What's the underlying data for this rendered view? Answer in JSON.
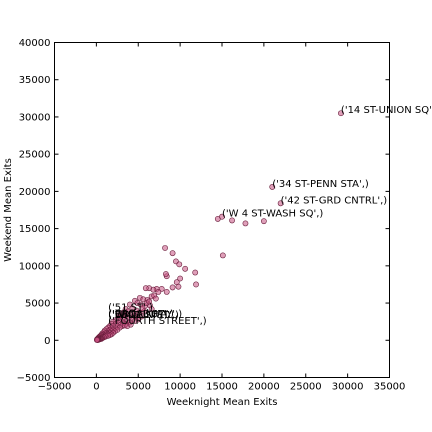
{
  "chart_data": {
    "type": "scatter",
    "title": "",
    "xlabel": "Weeknight Mean Exits",
    "ylabel": "Weekend Mean Exits",
    "xlim": [
      -5000,
      35000
    ],
    "ylim": [
      -5000,
      40000
    ],
    "x_ticks": [
      "−5000",
      "0",
      "5000",
      "10000",
      "15000",
      "20000",
      "25000",
      "30000",
      "35000"
    ],
    "y_ticks": [
      "−5000",
      "0",
      "5000",
      "10000",
      "15000",
      "20000",
      "25000",
      "30000",
      "35000",
      "40000"
    ],
    "grid": false,
    "marker_color": "#c4507f",
    "points": [
      [
        29200,
        30500
      ],
      [
        21000,
        20600
      ],
      [
        22000,
        18400
      ],
      [
        14500,
        16300
      ],
      [
        15000,
        16600
      ],
      [
        16200,
        16100
      ],
      [
        17800,
        15700
      ],
      [
        20000,
        16000
      ],
      [
        15100,
        11400
      ],
      [
        8200,
        12400
      ],
      [
        9100,
        11700
      ],
      [
        9500,
        10600
      ],
      [
        9900,
        10200
      ],
      [
        10600,
        9600
      ],
      [
        11800,
        9100
      ],
      [
        8400,
        8600
      ],
      [
        8300,
        8900
      ],
      [
        10000,
        8300
      ],
      [
        9600,
        7800
      ],
      [
        9100,
        7100
      ],
      [
        9800,
        7200
      ],
      [
        11900,
        7500
      ],
      [
        7800,
        6900
      ],
      [
        7200,
        6900
      ],
      [
        6800,
        6800
      ],
      [
        6300,
        7000
      ],
      [
        5900,
        7000
      ],
      [
        7400,
        6500
      ],
      [
        8400,
        6500
      ],
      [
        5200,
        5700
      ],
      [
        5600,
        5500
      ],
      [
        6100,
        5400
      ],
      [
        6600,
        5900
      ],
      [
        6900,
        6000
      ],
      [
        7100,
        5600
      ],
      [
        4600,
        5300
      ],
      [
        4900,
        5000
      ],
      [
        5300,
        4800
      ],
      [
        5800,
        4600
      ],
      [
        6400,
        4700
      ],
      [
        6600,
        4200
      ],
      [
        4000,
        4800
      ],
      [
        4300,
        4300
      ],
      [
        4800,
        4000
      ],
      [
        5100,
        3700
      ],
      [
        5700,
        3900
      ],
      [
        3500,
        4200
      ],
      [
        3800,
        3900
      ],
      [
        4200,
        3600
      ],
      [
        4500,
        3300
      ],
      [
        4900,
        3100
      ],
      [
        5400,
        3200
      ],
      [
        3200,
        3600
      ],
      [
        3500,
        3300
      ],
      [
        3900,
        3000
      ],
      [
        4300,
        2800
      ],
      [
        2900,
        3200
      ],
      [
        3200,
        2900
      ],
      [
        3600,
        2600
      ],
      [
        4000,
        2400
      ],
      [
        2600,
        3000
      ],
      [
        2900,
        2700
      ],
      [
        3200,
        2400
      ],
      [
        3500,
        2200
      ],
      [
        2300,
        2700
      ],
      [
        2600,
        2400
      ],
      [
        2900,
        2100
      ],
      [
        3100,
        1900
      ],
      [
        2000,
        2500
      ],
      [
        2300,
        2200
      ],
      [
        2500,
        1900
      ],
      [
        2800,
        1700
      ],
      [
        1800,
        2200
      ],
      [
        2000,
        1900
      ],
      [
        2300,
        1600
      ],
      [
        2500,
        1400
      ],
      [
        1600,
        1900
      ],
      [
        1800,
        1600
      ],
      [
        2000,
        1400
      ],
      [
        2200,
        1200
      ],
      [
        1400,
        1700
      ],
      [
        1600,
        1400
      ],
      [
        1800,
        1200
      ],
      [
        2000,
        1000
      ],
      [
        1200,
        1500
      ],
      [
        1400,
        1200
      ],
      [
        1600,
        1000
      ],
      [
        1800,
        800
      ],
      [
        1000,
        1300
      ],
      [
        1200,
        1000
      ],
      [
        1400,
        800
      ],
      [
        1600,
        700
      ],
      [
        900,
        1100
      ],
      [
        1000,
        900
      ],
      [
        1200,
        700
      ],
      [
        1400,
        600
      ],
      [
        700,
        900
      ],
      [
        800,
        700
      ],
      [
        1000,
        600
      ],
      [
        1100,
        500
      ],
      [
        600,
        700
      ],
      [
        700,
        500
      ],
      [
        800,
        400
      ],
      [
        900,
        400
      ],
      [
        500,
        600
      ],
      [
        600,
        400
      ],
      [
        700,
        300
      ],
      [
        400,
        500
      ],
      [
        500,
        300
      ],
      [
        600,
        200
      ],
      [
        300,
        400
      ],
      [
        400,
        300
      ],
      [
        500,
        200
      ],
      [
        250,
        300
      ],
      [
        300,
        200
      ],
      [
        400,
        150
      ],
      [
        200,
        250
      ],
      [
        250,
        150
      ],
      [
        300,
        100
      ],
      [
        150,
        200
      ],
      [
        200,
        120
      ],
      [
        250,
        80
      ],
      [
        100,
        150
      ],
      [
        150,
        100
      ],
      [
        200,
        60
      ],
      [
        80,
        100
      ],
      [
        100,
        60
      ],
      [
        150,
        40
      ],
      [
        60,
        50
      ],
      [
        3400,
        2000
      ],
      [
        3700,
        1900
      ],
      [
        4100,
        2100
      ],
      [
        2700,
        3400
      ],
      [
        3100,
        3700
      ],
      [
        4600,
        2600
      ],
      [
        5000,
        2800
      ],
      [
        5500,
        4300
      ],
      [
        6000,
        5000
      ],
      [
        6300,
        5200
      ]
    ],
    "annotations": [
      {
        "text": "('14 ST-UNION SQ',)",
        "x": 29200,
        "y": 30500
      },
      {
        "text": "('34 ST-PENN STA',)",
        "x": 21000,
        "y": 20600
      },
      {
        "text": "('42 ST-GRD CNTRL',)",
        "x": 22000,
        "y": 18400
      },
      {
        "text": "('W 4 ST-WASH SQ',)",
        "x": 15000,
        "y": 16600
      },
      {
        "text": "('51 ST',)",
        "x": 1400,
        "y": 4000
      },
      {
        "text": "('FULTON ST',)",
        "x": 1400,
        "y": 3000
      },
      {
        "text": "('CANAL ST',)",
        "x": 1400,
        "y": 3100
      },
      {
        "text": "('BROADWAY',)",
        "x": 1400,
        "y": 3100
      },
      {
        "text": "('WALL ST',)",
        "x": 1400,
        "y": 3000
      },
      {
        "text": "('FOURTH STREET',)",
        "x": 1400,
        "y": 2200
      }
    ]
  }
}
